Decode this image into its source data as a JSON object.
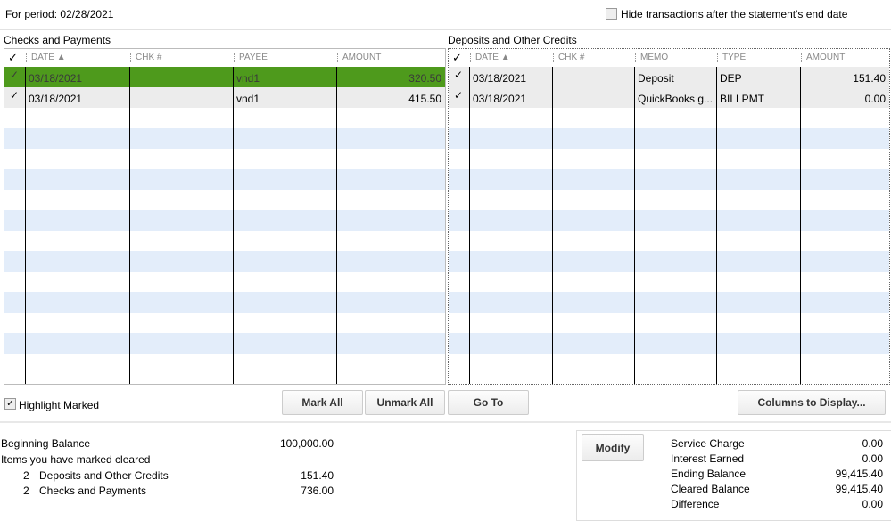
{
  "period": "For period: 02/28/2021",
  "hide_label": "Hide transactions after the statement's end date",
  "hide_checked": false,
  "checks": {
    "title": "Checks and Payments",
    "columns": [
      "✓",
      "DATE ▲",
      "CHK #",
      "PAYEE",
      "AMOUNT"
    ],
    "rows": [
      {
        "mark": "✓",
        "date": "03/18/2021",
        "chk": "",
        "payee": "vnd1",
        "amount": "320.50",
        "selected": true
      },
      {
        "mark": "✓",
        "date": "03/18/2021",
        "chk": "",
        "payee": "vnd1",
        "amount": "415.50",
        "selected": false
      }
    ]
  },
  "deposits": {
    "title": "Deposits and Other Credits",
    "columns": [
      "✓",
      "DATE ▲",
      "CHK #",
      "MEMO",
      "TYPE",
      "AMOUNT"
    ],
    "rows": [
      {
        "mark": "✓",
        "date": "03/18/2021",
        "chk": "",
        "memo": "Deposit",
        "type": "DEP",
        "amount": "151.40"
      },
      {
        "mark": "✓",
        "date": "03/18/2021",
        "chk": "",
        "memo": "QuickBooks g...",
        "type": "BILLPMT",
        "amount": "0.00"
      }
    ]
  },
  "highlight_label": "Highlight Marked",
  "highlight_checked": true,
  "buttons": {
    "mark_all": "Mark All",
    "unmark_all": "Unmark All",
    "go_to": "Go To",
    "columns": "Columns to Display...",
    "modify": "Modify"
  },
  "summary": {
    "beginning_label": "Beginning Balance",
    "beginning": "100,000.00",
    "items_label": "Items you have marked cleared",
    "dep_count": "2",
    "dep_label": "Deposits and Other Credits",
    "dep_amount": "151.40",
    "chk_count": "2",
    "chk_label": "Checks and Payments",
    "chk_amount": "736.00"
  },
  "totals": [
    {
      "label": "Service Charge",
      "value": "0.00"
    },
    {
      "label": "Interest Earned",
      "value": "0.00"
    },
    {
      "label": "Ending Balance",
      "value": "99,415.40"
    },
    {
      "label": "Cleared Balance",
      "value": "99,415.40"
    },
    {
      "label": "Difference",
      "value": "0.00"
    }
  ],
  "colors": {
    "selected_row": "#4e9a1c",
    "stripe": "#e3edfa",
    "marked_row": "#ececec"
  }
}
